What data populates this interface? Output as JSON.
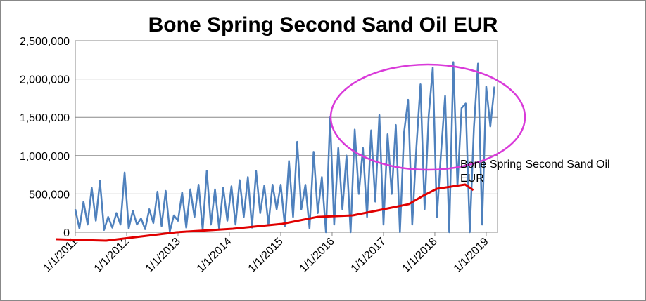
{
  "chart_data": {
    "type": "line",
    "title": "Bone Spring Second Sand Oil EUR",
    "xlim": [
      2011,
      2019.22
    ],
    "xticks": [
      {
        "value": 2011,
        "label": "1/1/2011"
      },
      {
        "value": 2012,
        "label": "1/1/2012"
      },
      {
        "value": 2013,
        "label": "1/1/2013"
      },
      {
        "value": 2014,
        "label": "1/1/2014"
      },
      {
        "value": 2015,
        "label": "1/1/2015"
      },
      {
        "value": 2016,
        "label": "1/1/2016"
      },
      {
        "value": 2017,
        "label": "1/1/2017"
      },
      {
        "value": 2018,
        "label": "1/1/2018"
      },
      {
        "value": 2019,
        "label": "1/1/2019"
      }
    ],
    "ylim": [
      0,
      2500000
    ],
    "yticks": [
      0,
      {
        "value": 500000,
        "label": "500,000"
      },
      {
        "value": 1000000,
        "label": "1,000,000"
      },
      {
        "value": 1500000,
        "label": "1,500,000"
      },
      {
        "value": 2000000,
        "label": "2,000,000"
      },
      {
        "value": 2500000,
        "label": "2,500,000"
      }
    ],
    "grid": true,
    "series": [
      {
        "name": "Bone Spring Second Sand Oil EUR",
        "color": "#4f81bd",
        "x": [
          2011,
          2011.08,
          2011.16,
          2011.24,
          2011.32,
          2011.4,
          2011.48,
          2011.56,
          2011.64,
          2011.72,
          2011.8,
          2011.88,
          2011.96,
          2012.04,
          2012.12,
          2012.2,
          2012.28,
          2012.36,
          2012.44,
          2012.52,
          2012.6,
          2012.68,
          2012.76,
          2012.84,
          2012.92,
          2013,
          2013.08,
          2013.16,
          2013.24,
          2013.32,
          2013.4,
          2013.48,
          2013.56,
          2013.64,
          2013.72,
          2013.8,
          2013.88,
          2013.96,
          2014.04,
          2014.12,
          2014.2,
          2014.28,
          2014.36,
          2014.44,
          2014.52,
          2014.6,
          2014.68,
          2014.76,
          2014.84,
          2014.92,
          2015,
          2015.08,
          2015.16,
          2015.24,
          2015.32,
          2015.4,
          2015.48,
          2015.56,
          2015.64,
          2015.72,
          2015.8,
          2015.88,
          2015.96,
          2016.04,
          2016.12,
          2016.2,
          2016.28,
          2016.36,
          2016.44,
          2016.52,
          2016.6,
          2016.68,
          2016.76,
          2016.84,
          2016.92,
          2017,
          2017.08,
          2017.16,
          2017.24,
          2017.32,
          2017.4,
          2017.48,
          2017.56,
          2017.64,
          2017.72,
          2017.8,
          2017.88,
          2017.96,
          2018.04,
          2018.12,
          2018.2,
          2018.28,
          2018.36,
          2018.44,
          2018.52,
          2018.6,
          2018.68,
          2018.76,
          2018.84,
          2018.92,
          2019,
          2019.08,
          2019.16
        ],
        "values": [
          300000,
          50000,
          400000,
          100000,
          580000,
          150000,
          670000,
          30000,
          200000,
          60000,
          250000,
          100000,
          780000,
          50000,
          280000,
          100000,
          180000,
          40000,
          300000,
          120000,
          530000,
          80000,
          540000,
          10000,
          220000,
          150000,
          520000,
          60000,
          560000,
          200000,
          620000,
          30000,
          800000,
          100000,
          560000,
          50000,
          580000,
          150000,
          600000,
          100000,
          680000,
          200000,
          720000,
          60000,
          800000,
          250000,
          610000,
          100000,
          620000,
          300000,
          620000,
          80000,
          930000,
          200000,
          1180000,
          300000,
          620000,
          50000,
          1050000,
          250000,
          720000,
          0,
          1500000,
          100000,
          1100000,
          300000,
          1000000,
          0,
          1340000,
          500000,
          1100000,
          200000,
          1330000,
          400000,
          1530000,
          100000,
          1280000,
          500000,
          1400000,
          0,
          1300000,
          1730000,
          100000,
          1100000,
          1930000,
          300000,
          1520000,
          2150000,
          200000,
          1040000,
          1780000,
          0,
          2220000,
          600000,
          1620000,
          1680000,
          0,
          1360000,
          2200000,
          100000,
          1900000,
          1380000,
          1900000
        ]
      },
      {
        "color": "#e00000",
        "x": [
          2010.62,
          2011.6,
          2012.97,
          2014.07,
          2015.03,
          2015.71,
          2016.4,
          2016.95,
          2017.49,
          2017.77,
          2018.04,
          2018.59,
          2018.75
        ],
        "values": [
          -91000,
          -110000,
          0,
          46000,
          110000,
          200000,
          220000,
          293000,
          366000,
          476000,
          568000,
          623000,
          550000
        ]
      }
    ]
  }
}
